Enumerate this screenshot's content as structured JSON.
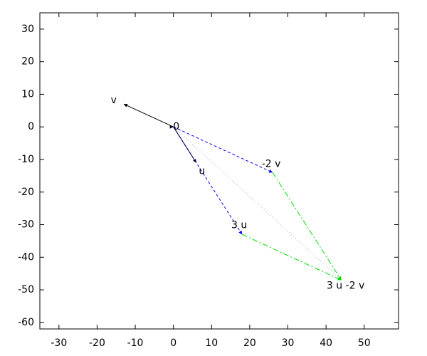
{
  "chart_data": {
    "type": "vector",
    "xlim": [
      -35,
      59
    ],
    "ylim": [
      -62,
      35
    ],
    "xticks": [
      -30,
      -20,
      -10,
      0,
      10,
      20,
      30,
      40,
      50
    ],
    "yticks": [
      -60,
      -50,
      -40,
      -30,
      -20,
      -10,
      0,
      10,
      20,
      30
    ],
    "points": [
      {
        "label": "0",
        "x": 0,
        "y": 0
      },
      {
        "label": "v",
        "x": -13,
        "y": 7
      },
      {
        "label": "u",
        "x": 6,
        "y": -11
      },
      {
        "label": "-2 v",
        "x": 26,
        "y": -14
      },
      {
        "label": "3 u",
        "x": 18,
        "y": -33
      },
      {
        "label": "3 u -2 v",
        "x": 44,
        "y": -47
      }
    ],
    "vectors": [
      {
        "from": [
          0,
          0
        ],
        "to": [
          0,
          0
        ],
        "color": "#000000",
        "dash": "solid"
      },
      {
        "from": [
          0,
          0
        ],
        "to": [
          44,
          -47
        ],
        "color": "#aaaaaa",
        "dash": "dotted"
      },
      {
        "from": [
          0,
          0
        ],
        "to": [
          26,
          -14
        ],
        "color": "#0000ff",
        "dash": "dashed"
      },
      {
        "from": [
          0,
          0
        ],
        "to": [
          18,
          -33
        ],
        "color": "#0000ff",
        "dash": "dashed"
      },
      {
        "from": [
          26,
          -14
        ],
        "to": [
          44,
          -47
        ],
        "color": "#00dd00",
        "dash": "dash-dot"
      },
      {
        "from": [
          18,
          -33
        ],
        "to": [
          44,
          -47
        ],
        "color": "#00dd00",
        "dash": "dash-dot"
      },
      {
        "from": [
          0,
          0
        ],
        "to": [
          -13,
          7
        ],
        "color": "#000000",
        "dash": "solid"
      },
      {
        "from": [
          0,
          0
        ],
        "to": [
          6,
          -11
        ],
        "color": "#000040",
        "dash": "solid"
      }
    ]
  }
}
